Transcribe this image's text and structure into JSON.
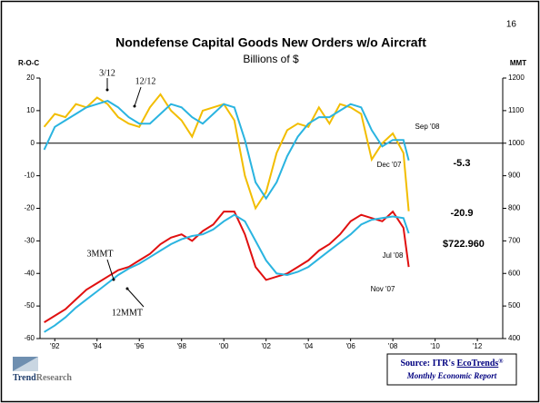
{
  "page_number": "16",
  "chart_data": {
    "type": "line",
    "title": "Nondefense Capital Goods New Orders w/o Aircraft",
    "subtitle": "Billions of $",
    "y_label": "R-O-C",
    "y2_label": "MMT",
    "x": [
      1991.5,
      1992,
      1992.5,
      1993,
      1993.5,
      1994,
      1994.5,
      1995,
      1995.5,
      1996,
      1996.5,
      1997,
      1997.5,
      1998,
      1998.5,
      1999,
      1999.5,
      2000,
      2000.5,
      2001,
      2001.5,
      2002,
      2002.5,
      2003,
      2003.5,
      2004,
      2004.5,
      2005,
      2005.5,
      2006,
      2006.5,
      2007,
      2007.5,
      2008,
      2008.5,
      2008.75
    ],
    "xlim": [
      1991.3,
      2013.2
    ],
    "xticks": [
      {
        "value": 1992,
        "label": "'92"
      },
      {
        "value": 1994,
        "label": "'94"
      },
      {
        "value": 1996,
        "label": "'96"
      },
      {
        "value": 1998,
        "label": "'98"
      },
      {
        "value": 2000,
        "label": "'00"
      },
      {
        "value": 2002,
        "label": "'02"
      },
      {
        "value": 2004,
        "label": "'04"
      },
      {
        "value": 2006,
        "label": "'06"
      },
      {
        "value": 2008,
        "label": "'08"
      },
      {
        "value": 2010,
        "label": "'10"
      },
      {
        "value": 2012,
        "label": "'12"
      }
    ],
    "ylim": [
      -60,
      20
    ],
    "yticks": [
      -60,
      -50,
      -40,
      -30,
      -20,
      -10,
      0,
      10,
      20
    ],
    "y2lim": [
      400,
      1200
    ],
    "y2ticks": [
      400,
      500,
      600,
      700,
      800,
      900,
      1000,
      1100,
      1200
    ],
    "zero_line": true,
    "series": [
      {
        "name": "3/12",
        "color": "#f2bd00",
        "axis": "y",
        "values": [
          5,
          9,
          8,
          12,
          11,
          14,
          12,
          8,
          6,
          5,
          11,
          15,
          10,
          7,
          2,
          10,
          11,
          12,
          7,
          -10,
          -20,
          -15,
          -3,
          4,
          6,
          5,
          11,
          6,
          12,
          11,
          9,
          -5,
          0,
          3,
          -3,
          -20.9
        ]
      },
      {
        "name": "12/12",
        "color": "#2ab4e0",
        "axis": "y",
        "values": [
          -2,
          5,
          7,
          9,
          11,
          12,
          13,
          11,
          8,
          6,
          6,
          9,
          12,
          11,
          8,
          6,
          9,
          12,
          11,
          1,
          -12,
          -17,
          -12,
          -4,
          2,
          6,
          8,
          8,
          10,
          12,
          11,
          4,
          -1,
          1,
          1,
          -5.3
        ]
      },
      {
        "name": "3MMT",
        "color": "#e01010",
        "axis": "y2",
        "values": [
          450,
          470,
          490,
          520,
          550,
          570,
          590,
          610,
          620,
          640,
          660,
          690,
          710,
          720,
          700,
          730,
          750,
          790,
          790,
          720,
          620,
          580,
          590,
          600,
          620,
          640,
          670,
          690,
          720,
          760,
          780,
          770,
          760,
          790,
          740,
          620
        ]
      },
      {
        "name": "12MMT",
        "color": "#2ab4e0",
        "axis": "y2",
        "values": [
          420,
          440,
          465,
          495,
          520,
          545,
          570,
          595,
          615,
          630,
          650,
          670,
          690,
          705,
          715,
          720,
          735,
          760,
          780,
          760,
          700,
          640,
          600,
          595,
          605,
          620,
          645,
          670,
          695,
          720,
          750,
          765,
          770,
          775,
          770,
          722.96
        ],
        "value_labels": [
          null,
          null,
          null,
          null,
          null,
          null,
          null,
          null,
          null,
          null,
          null,
          null,
          null,
          null,
          null,
          null,
          null,
          null,
          null,
          null,
          null,
          null,
          null,
          null,
          null,
          null,
          null,
          null,
          null,
          null,
          null,
          null,
          null,
          null,
          null,
          "$722.960"
        ]
      }
    ],
    "annotations": [
      "Sep '08",
      "Dec '07",
      "Jul '08",
      "Nov '07"
    ]
  },
  "source": {
    "prefix": "Source: ITR's",
    "link": "EcoTrends",
    "mark": "®",
    "sub": "Monthly Economic Report"
  },
  "logo": {
    "a": "Trend",
    "b": "Research"
  }
}
